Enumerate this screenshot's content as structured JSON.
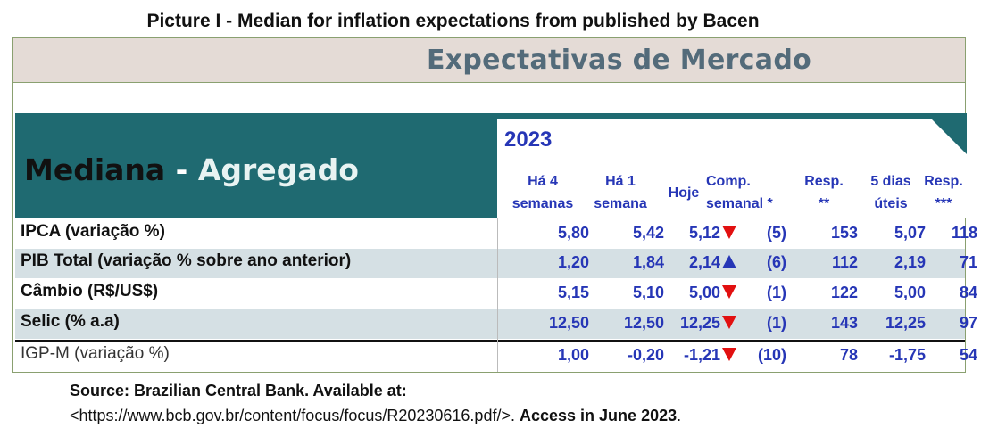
{
  "caption": "Picture I - Median for inflation expectations from published by Bacen",
  "band_title": "Expectativas de Mercado",
  "heading": {
    "part1": "Mediana",
    "sep": " - ",
    "part2": "Agregado"
  },
  "year": "2023",
  "columns": [
    {
      "line1": "Há 4",
      "line2": "semanas"
    },
    {
      "line1": "Há 1",
      "line2": "semana"
    },
    {
      "line1": "",
      "line2": "Hoje"
    },
    {
      "line1": "Comp.",
      "line2": "semanal *"
    },
    {
      "line1": "Resp.",
      "line2": "**"
    },
    {
      "line1": "5 dias",
      "line2": "úteis"
    },
    {
      "line1": "Resp.",
      "line2": "***"
    }
  ],
  "rows": [
    {
      "label": "IPCA (variação %)",
      "v4": "5,80",
      "v1": "5,42",
      "hoje": "5,12",
      "dir": "down",
      "comp": "(5)",
      "resp": "153",
      "d5": "5,07",
      "resp2": "118"
    },
    {
      "label": "PIB Total (variação % sobre ano anterior)",
      "v4": "1,20",
      "v1": "1,84",
      "hoje": "2,14",
      "dir": "up",
      "comp": "(6)",
      "resp": "112",
      "d5": "2,19",
      "resp2": "71"
    },
    {
      "label": "Câmbio (R$/US$)",
      "v4": "5,15",
      "v1": "5,10",
      "hoje": "5,00",
      "dir": "down",
      "comp": "(1)",
      "resp": "122",
      "d5": "5,00",
      "resp2": "84"
    },
    {
      "label": "Selic (% a.a)",
      "v4": "12,50",
      "v1": "12,50",
      "hoje": "12,25",
      "dir": "down",
      "comp": "(1)",
      "resp": "143",
      "d5": "12,25",
      "resp2": "97"
    },
    {
      "label": "IGP-M (variação %)",
      "v4": "1,00",
      "v1": "-0,20",
      "hoje": "-1,21",
      "dir": "down",
      "comp": "(10)",
      "resp": "78",
      "d5": "-1,75",
      "resp2": "54"
    }
  ],
  "source": {
    "line1": "Source: Brazilian Central Bank.  Available at:",
    "url": "<https://www.bcb.gov.br/content/focus/focus/R20230616.pdf/>.",
    "access": "Access in June 2023",
    "end": "."
  }
}
